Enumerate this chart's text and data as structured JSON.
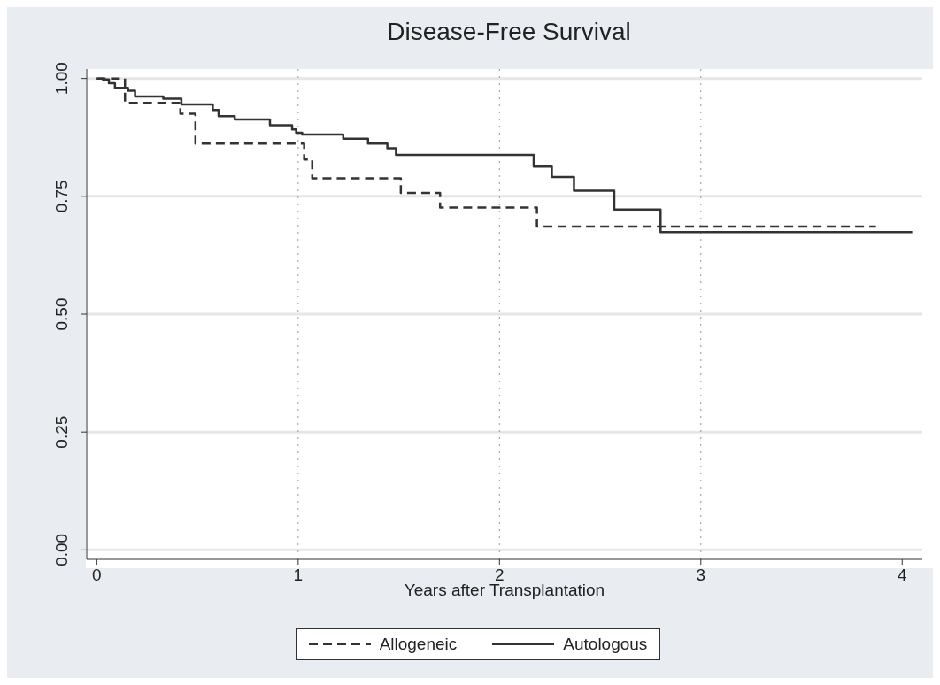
{
  "chart_data": {
    "type": "step",
    "title": "Disease-Free Survival",
    "xlabel": "Years after Transplantation",
    "xlim": [
      -0.05,
      4.1
    ],
    "xticks": [
      0,
      1,
      2,
      3,
      4
    ],
    "ylim": [
      -0.02,
      1.02
    ],
    "yticks": [
      {
        "value": 0,
        "label": "0.00"
      },
      {
        "value": 0.25,
        "label": "0.25"
      },
      {
        "value": 0.5,
        "label": "0.50"
      },
      {
        "value": 0.75,
        "label": "0.75"
      },
      {
        "value": 1,
        "label": "1.00"
      }
    ],
    "grid": true,
    "legend": "bottom",
    "marker": "none",
    "series": [
      {
        "name": "Allogeneic",
        "color": "#333333",
        "line_style": "dashed",
        "x": [
          0,
          0.14,
          0.415,
          0.49,
          1.03,
          1.07,
          1.51,
          1.705,
          2.186,
          3.87
        ],
        "values": [
          1,
          0.948,
          0.925,
          0.862,
          0.828,
          0.788,
          0.757,
          0.726,
          0.686,
          0.686
        ]
      },
      {
        "name": "Autologous",
        "color": "#333333",
        "line_style": "solid",
        "x": [
          0,
          0.03,
          0.06,
          0.09,
          0.155,
          0.19,
          0.33,
          0.42,
          0.576,
          0.605,
          0.685,
          0.86,
          0.97,
          0.99,
          1.02,
          1.224,
          1.347,
          1.443,
          1.486,
          2.17,
          2.26,
          2.37,
          2.57,
          2.8,
          4.05
        ],
        "values": [
          1,
          0.998,
          0.99,
          0.98,
          0.974,
          0.962,
          0.957,
          0.945,
          0.933,
          0.92,
          0.913,
          0.901,
          0.892,
          0.885,
          0.881,
          0.872,
          0.862,
          0.852,
          0.838,
          0.813,
          0.791,
          0.762,
          0.722,
          0.674,
          0.674
        ]
      }
    ]
  }
}
